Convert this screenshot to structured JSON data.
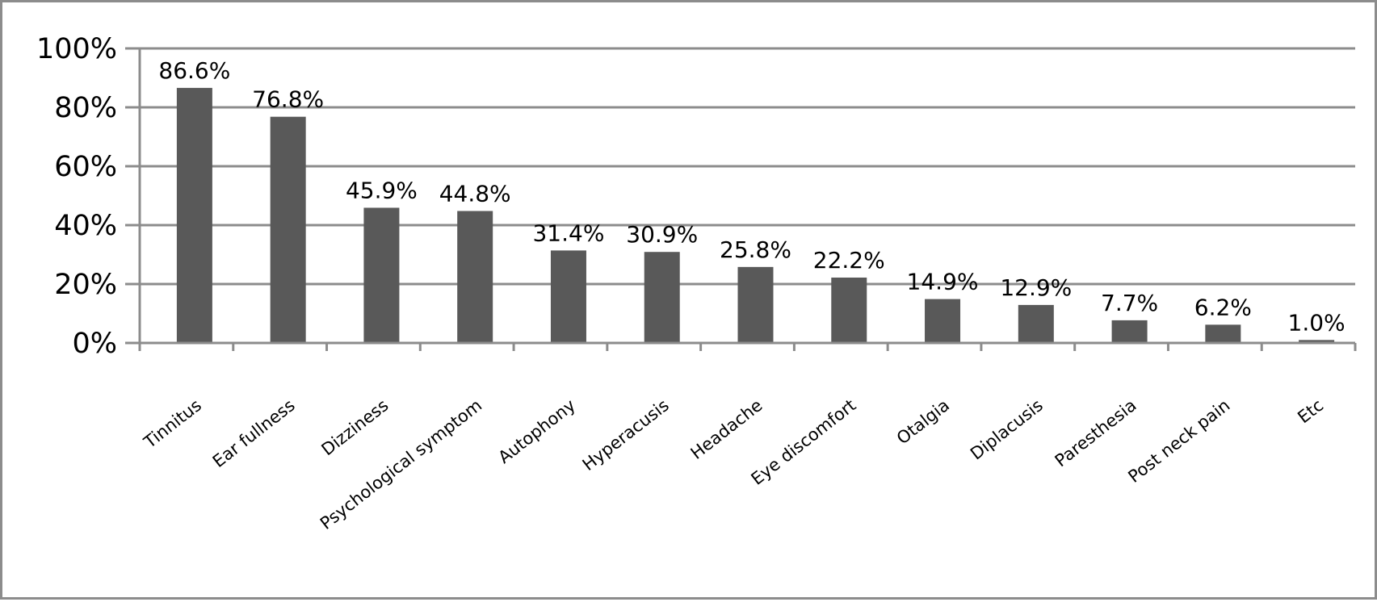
{
  "chart_data": {
    "type": "bar",
    "categories": [
      "Tinnitus",
      "Ear fullness",
      "Dizziness",
      "Psychological symptom",
      "Autophony",
      "Hyperacusis",
      "Headache",
      "Eye discomfort",
      "Otalgia",
      "Diplacusis",
      "Paresthesia",
      "Post neck pain",
      "Etc"
    ],
    "values": [
      86.6,
      76.8,
      45.9,
      44.8,
      31.4,
      30.9,
      25.8,
      22.2,
      14.9,
      12.9,
      7.7,
      6.2,
      1.0
    ],
    "data_labels": [
      "86.6%",
      "76.8%",
      "45.9%",
      "44.8%",
      "31.4%",
      "30.9%",
      "25.8%",
      "22.2%",
      "14.9%",
      "12.9%",
      "7.7%",
      "6.2%",
      "1.0%"
    ],
    "yticks": [
      "0%",
      "20%",
      "40%",
      "60%",
      "80%",
      "100%"
    ],
    "ylim": [
      0,
      100
    ],
    "grid": true,
    "legend": "none",
    "title": "",
    "xlabel": "",
    "ylabel": "",
    "colors": {
      "bar": "#595959",
      "grid": "#8c8c8c",
      "axis": "#8c8c8c",
      "frame": "#8c8c8c"
    }
  }
}
